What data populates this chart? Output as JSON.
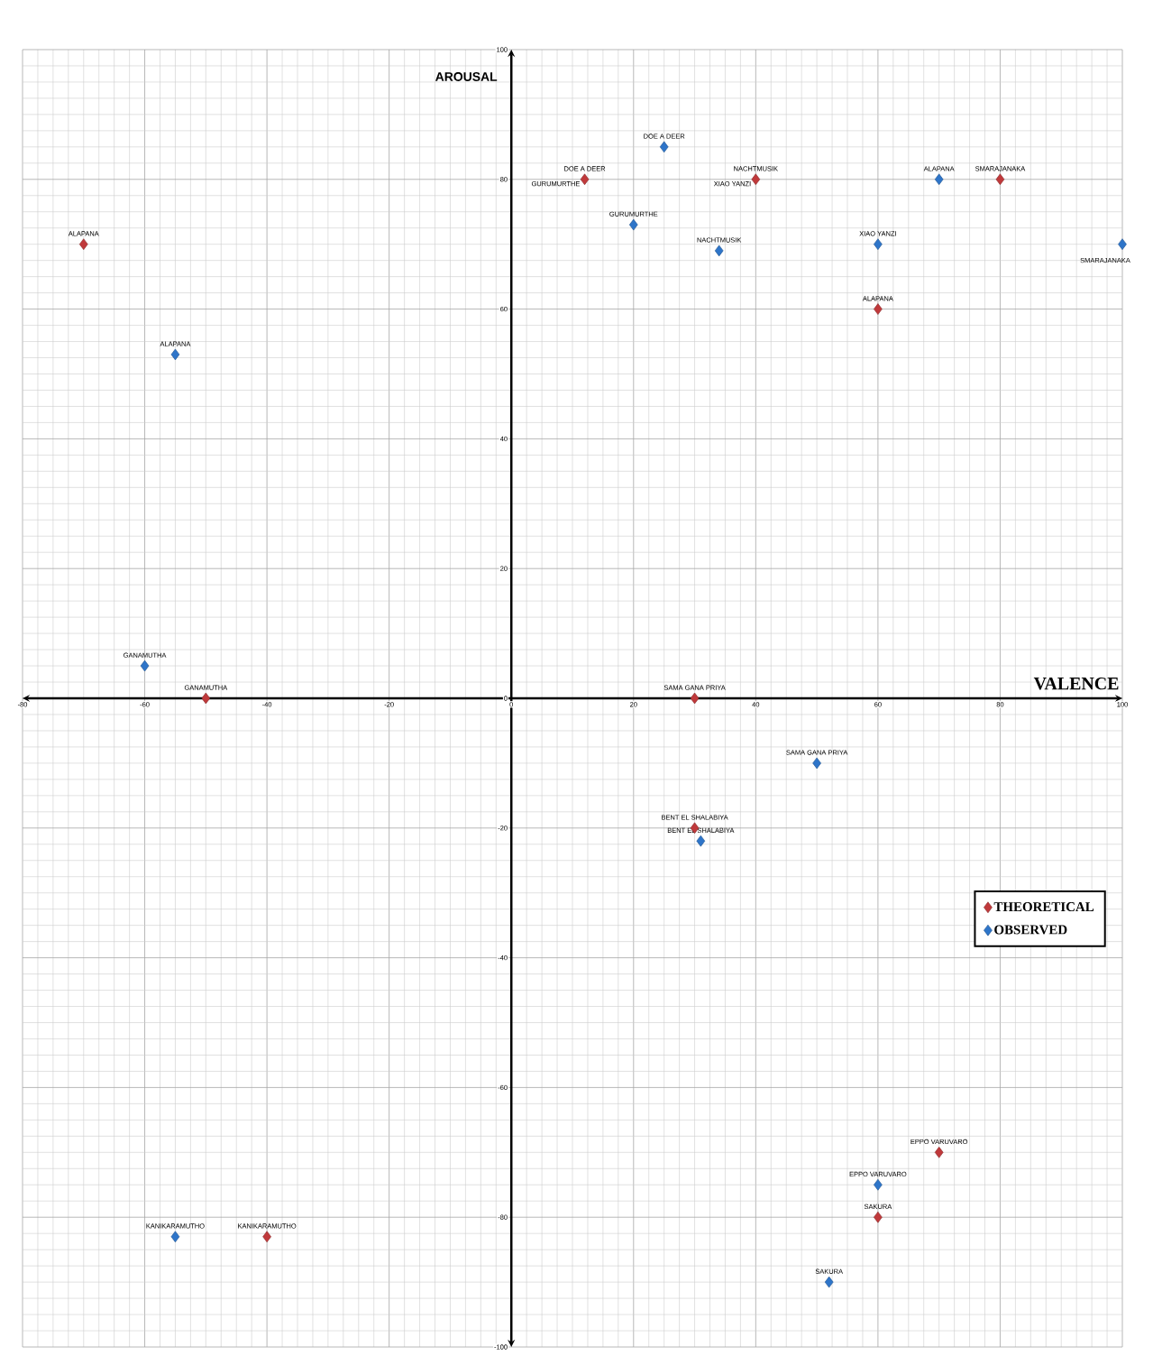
{
  "chart_data": {
    "type": "scatter",
    "xlabel": "VALENCE",
    "ylabel": "AROUSAL",
    "xlim": [
      -80,
      100
    ],
    "ylim": [
      -100,
      100
    ],
    "xticks": [
      -80,
      -60,
      -40,
      -20,
      0,
      20,
      40,
      60,
      80,
      100
    ],
    "yticks": [
      -100,
      -80,
      -60,
      -40,
      -20,
      0,
      20,
      40,
      60,
      80,
      100
    ],
    "grid": true,
    "legend": "right",
    "marker": "diamond",
    "series": [
      {
        "name": "THEORETICAL",
        "color": "#c0393b",
        "x": [
          -70,
          -50,
          -40,
          12,
          40,
          80,
          60,
          30,
          30,
          70,
          60
        ],
        "values": [
          70,
          0,
          -83,
          80,
          80,
          80,
          60,
          0,
          -20,
          -70,
          -80
        ]
      },
      {
        "name": "OBSERVED",
        "color": "#2e75c9",
        "x": [
          -55,
          -60,
          -55,
          25,
          20,
          34,
          70,
          60,
          100,
          50,
          31,
          60,
          52
        ],
        "values": [
          53,
          5,
          -83,
          85,
          73,
          69,
          80,
          70,
          70,
          -10,
          -22,
          -75,
          -90
        ]
      }
    ],
    "annotations": [
      {
        "text": "ALAPANA",
        "x": -70,
        "y": 70
      },
      {
        "text": "GANAMUTHA",
        "x": -50,
        "y": 0
      },
      {
        "text": "KANIKARAMUTHO",
        "x": -40,
        "y": -83
      },
      {
        "text": "DOE A DEER",
        "x": 12,
        "y": 80
      },
      {
        "text": "GURUMURTHE",
        "x": 12,
        "y": 80
      },
      {
        "text": "NACHTMUSIK",
        "x": 40,
        "y": 80
      },
      {
        "text": "XIAO YANZI",
        "x": 40,
        "y": 80
      },
      {
        "text": "SMARAJANAKA",
        "x": 80,
        "y": 80
      },
      {
        "text": "ALAPANA",
        "x": 60,
        "y": 60
      },
      {
        "text": "SAMA GANA PRIYA",
        "x": 30,
        "y": 0
      },
      {
        "text": "BENT EL SHALABIYA",
        "x": 30,
        "y": -20
      },
      {
        "text": "EPPO VARUVARO",
        "x": 70,
        "y": -70
      },
      {
        "text": "SAKURA",
        "x": 60,
        "y": -80
      },
      {
        "text": "ALAPANA",
        "x": -55,
        "y": 53
      },
      {
        "text": "GANAMUTHA",
        "x": -60,
        "y": 5
      },
      {
        "text": "KANIKARAMUTHO",
        "x": -55,
        "y": -83
      },
      {
        "text": "DOE A DEER",
        "x": 25,
        "y": 85
      },
      {
        "text": "GURUMURTHE",
        "x": 20,
        "y": 73
      },
      {
        "text": "NACHTMUSIK",
        "x": 34,
        "y": 69
      },
      {
        "text": "ALAPANA",
        "x": 70,
        "y": 80
      },
      {
        "text": "XIAO YANZI",
        "x": 60,
        "y": 70
      },
      {
        "text": "SMARAJANAKA",
        "x": 100,
        "y": 70
      },
      {
        "text": "SAMA GANA PRIYA",
        "x": 50,
        "y": -10
      },
      {
        "text": "BENT EL SHALABIYA",
        "x": 31,
        "y": -22
      },
      {
        "text": "EPPO VARUVARO",
        "x": 60,
        "y": -75
      },
      {
        "text": "SAKURA",
        "x": 52,
        "y": -90
      }
    ]
  }
}
